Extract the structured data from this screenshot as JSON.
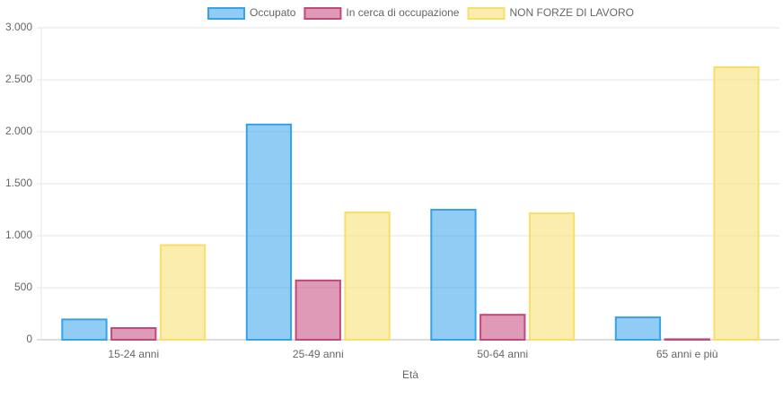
{
  "chart_data": {
    "type": "bar",
    "x_label": "Età",
    "categories": [
      "15-24 anni",
      "25-49 anni",
      "50-64 anni",
      "65 anni e più"
    ],
    "series": [
      {
        "name": "Occupato",
        "color": "#36a2eb",
        "values": [
          195,
          2070,
          1250,
          215
        ]
      },
      {
        "name": "In cerca di occupazione",
        "color": "#c2477a",
        "values": [
          112,
          570,
          240,
          5
        ]
      },
      {
        "name": "NON FORZE DI LAVORO",
        "color": "#f7df6a",
        "values": [
          910,
          1224,
          1216,
          2621
        ]
      }
    ],
    "ylim": [
      0,
      3000
    ],
    "yticks": [
      0,
      {
        "value": 500,
        "label": "500"
      },
      {
        "value": 1000,
        "label": "1.000"
      },
      {
        "value": 1500,
        "label": "1.500"
      },
      {
        "value": 2000,
        "label": "2.000"
      },
      {
        "value": 2500,
        "label": "2.500"
      },
      {
        "value": 3000,
        "label": "3.000"
      }
    ],
    "grid": true,
    "legend": "top"
  }
}
